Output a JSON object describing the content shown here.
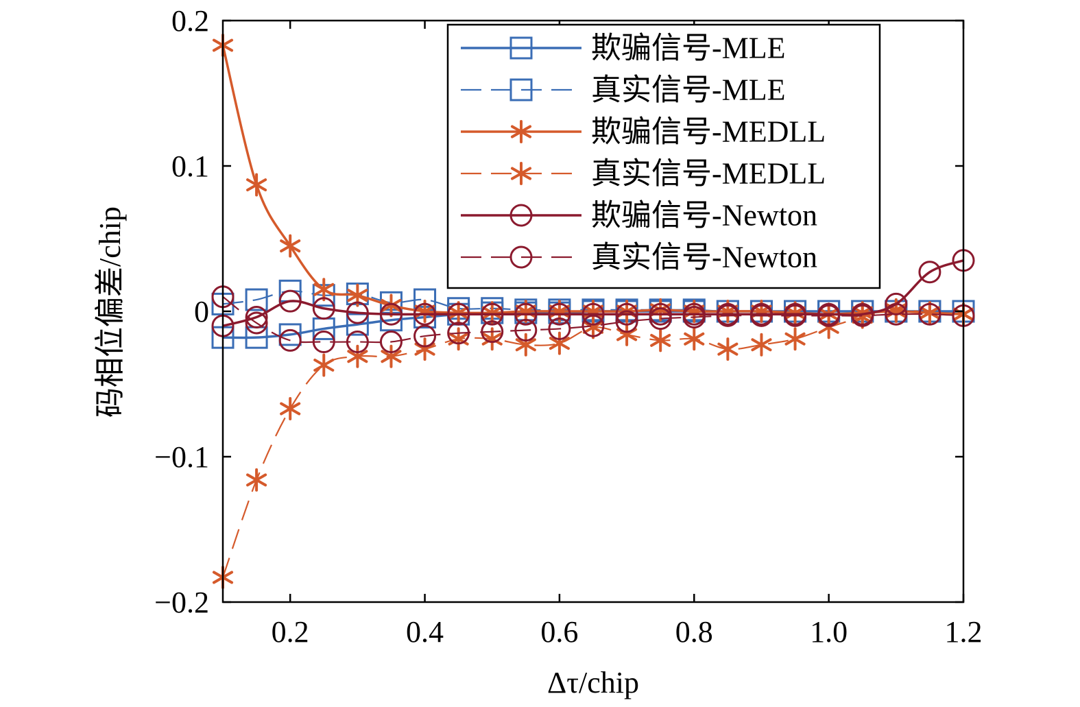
{
  "chart_data": {
    "type": "line",
    "xlabel": "Δτ/chip",
    "ylabel": "码相位偏差/chip",
    "xlim": [
      0.1,
      1.2
    ],
    "ylim": [
      -0.2,
      0.2
    ],
    "xticks": [
      0.2,
      0.4,
      0.6,
      0.8,
      1.0,
      1.2
    ],
    "xtick_labels": [
      "0.2",
      "0.4",
      "0.6",
      "0.8",
      "1.0",
      "1.2"
    ],
    "yticks": [
      -0.2,
      -0.1,
      0,
      0.1,
      0.2
    ],
    "ytick_labels": [
      "−0.2",
      "−0.1",
      "0",
      "0.1",
      "0.2"
    ],
    "grid": false,
    "legend_position": "top-right",
    "x": [
      0.1,
      0.15,
      0.2,
      0.25,
      0.3,
      0.35,
      0.4,
      0.45,
      0.5,
      0.55,
      0.6,
      0.65,
      0.7,
      0.75,
      0.8,
      0.85,
      0.9,
      0.95,
      1.0,
      1.05,
      1.1,
      1.15,
      1.2
    ],
    "series": [
      {
        "name": "欺骗信号-MLE",
        "color": "#3a6db5",
        "dash": "solid",
        "marker": "square",
        "values": [
          -0.018,
          -0.018,
          -0.016,
          -0.012,
          -0.009,
          -0.006,
          -0.004,
          -0.002,
          -0.001,
          -0.001,
          -0.001,
          0.0,
          0.0,
          0.0,
          0.0,
          0.0,
          0.0,
          0.0,
          0.0,
          0.0,
          0.0,
          0.0,
          0.0
        ]
      },
      {
        "name": "真实信号-MLE",
        "color": "#3a6db5",
        "dash": "dashed",
        "marker": "square",
        "values": [
          0.005,
          0.008,
          0.014,
          0.011,
          0.012,
          0.006,
          0.008,
          0.002,
          0.002,
          0.001,
          0.001,
          0.001,
          0.001,
          0.001,
          0.001,
          0.0,
          0.0,
          0.0,
          0.0,
          0.0,
          0.0,
          0.0,
          0.0
        ]
      },
      {
        "name": "欺骗信号-MEDLL",
        "color": "#d55a2b",
        "dash": "solid",
        "marker": "asterisk",
        "values": [
          0.183,
          0.087,
          0.045,
          0.015,
          0.011,
          0.004,
          0.0,
          -0.001,
          -0.001,
          0.0,
          0.0,
          0.0,
          0.0,
          0.001,
          0.0,
          0.0,
          0.0,
          -0.001,
          -0.002,
          -0.001,
          0.0,
          -0.001,
          -0.002
        ]
      },
      {
        "name": "真实信号-MEDLL",
        "color": "#d55a2b",
        "dash": "dashed",
        "marker": "asterisk",
        "values": [
          -0.183,
          -0.116,
          -0.067,
          -0.037,
          -0.031,
          -0.031,
          -0.026,
          -0.019,
          -0.019,
          -0.023,
          -0.022,
          -0.011,
          -0.016,
          -0.02,
          -0.019,
          -0.026,
          -0.023,
          -0.019,
          -0.011,
          -0.004,
          0.001,
          -0.001,
          -0.002
        ]
      },
      {
        "name": "欺骗信号-Newton",
        "color": "#8b1a2e",
        "dash": "solid",
        "marker": "circle",
        "values": [
          -0.01,
          -0.004,
          0.007,
          0.002,
          -0.001,
          -0.002,
          -0.002,
          -0.002,
          -0.002,
          -0.002,
          -0.002,
          -0.002,
          -0.002,
          -0.002,
          -0.002,
          -0.002,
          -0.002,
          -0.002,
          -0.002,
          -0.002,
          0.005,
          0.027,
          0.035
        ]
      },
      {
        "name": "真实信号-Newton",
        "color": "#8b1a2e",
        "dash": "dashed",
        "marker": "circle",
        "values": [
          0.01,
          -0.008,
          -0.02,
          -0.021,
          -0.021,
          -0.021,
          -0.017,
          -0.015,
          -0.014,
          -0.013,
          -0.012,
          -0.01,
          -0.007,
          -0.005,
          -0.004,
          -0.003,
          -0.003,
          -0.003,
          -0.003,
          -0.003,
          -0.002,
          -0.002,
          -0.003
        ]
      }
    ]
  }
}
